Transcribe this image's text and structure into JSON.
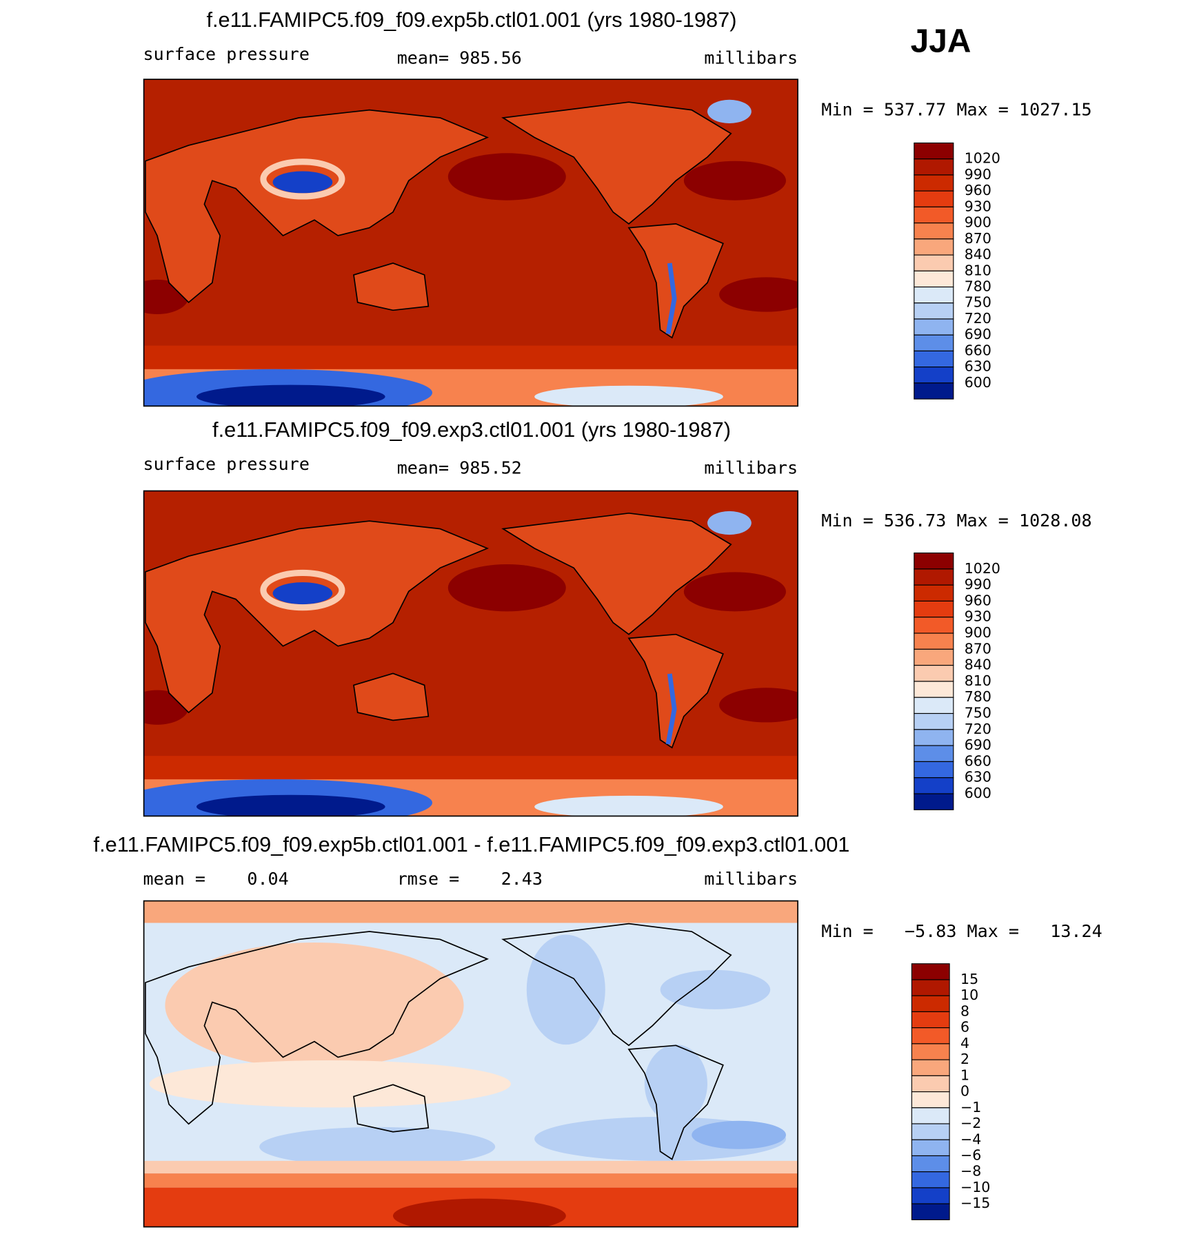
{
  "header": {
    "season": "JJA"
  },
  "panels": [
    {
      "title": "f.e11.FAMIPC5.f09_f09.exp5b.ctl01.001 (yrs 1980-1987)",
      "left_label": "surface pressure",
      "center_label": "mean= 985.56",
      "right_label": "millibars",
      "minmax": "Min = 537.77 Max = 1027.15",
      "colorbar": {
        "labels": [
          "1020",
          "990",
          "960",
          "930",
          "900",
          "870",
          "840",
          "810",
          "780",
          "750",
          "720",
          "690",
          "660",
          "630",
          "600"
        ],
        "colors": [
          "#8c0000",
          "#b01800",
          "#cc2a00",
          "#e43c10",
          "#f25a28",
          "#f7824e",
          "#f9a77c",
          "#fbcbb0",
          "#fde8d8",
          "#dbe9f8",
          "#b7d0f4",
          "#8fb4f0",
          "#5d8ee8",
          "#3468e0",
          "#1440c8",
          "#001a8c"
        ]
      }
    },
    {
      "title": "f.e11.FAMIPC5.f09_f09.exp3.ctl01.001 (yrs 1980-1987)",
      "left_label": "surface pressure",
      "center_label": "mean= 985.52",
      "right_label": "millibars",
      "minmax": "Min = 536.73 Max = 1028.08",
      "colorbar": {
        "labels": [
          "1020",
          "990",
          "960",
          "930",
          "900",
          "870",
          "840",
          "810",
          "780",
          "750",
          "720",
          "690",
          "660",
          "630",
          "600"
        ],
        "colors": [
          "#8c0000",
          "#b01800",
          "#cc2a00",
          "#e43c10",
          "#f25a28",
          "#f7824e",
          "#f9a77c",
          "#fbcbb0",
          "#fde8d8",
          "#dbe9f8",
          "#b7d0f4",
          "#8fb4f0",
          "#5d8ee8",
          "#3468e0",
          "#1440c8",
          "#001a8c"
        ]
      }
    },
    {
      "title": "f.e11.FAMIPC5.f09_f09.exp5b.ctl01.001 - f.e11.FAMIPC5.f09_f09.exp3.ctl01.001",
      "left_label": "mean =    0.04",
      "center_label": "rmse =    2.43",
      "right_label": "millibars",
      "minmax": "Min =   −5.83 Max =   13.24",
      "colorbar": {
        "labels": [
          "15",
          "10",
          "8",
          "6",
          "4",
          "2",
          "1",
          "0",
          "−1",
          "−2",
          "−4",
          "−6",
          "−8",
          "−10",
          "−15"
        ],
        "colors": [
          "#8c0000",
          "#b01800",
          "#cc2a00",
          "#e43c10",
          "#f25a28",
          "#f7824e",
          "#f9a77c",
          "#fbcbb0",
          "#fde8d8",
          "#dbe9f8",
          "#b7d0f4",
          "#8fb4f0",
          "#5d8ee8",
          "#3468e0",
          "#1440c8",
          "#001a8c"
        ]
      }
    }
  ]
}
